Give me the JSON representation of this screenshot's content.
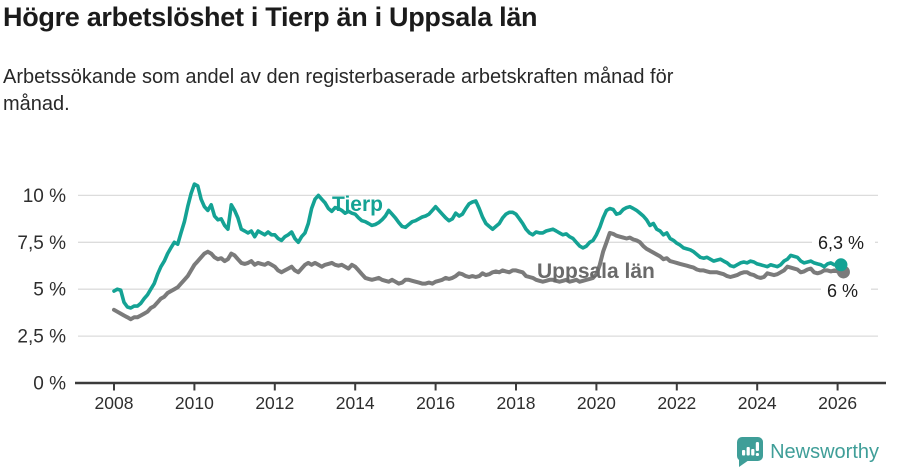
{
  "header": {
    "title": "Högre arbetslöshet i Tierp än i Uppsala län",
    "subtitle_lines": [
      "Arbetssökande som andel av den registerbaserade arbetskraften månad för",
      "månad."
    ]
  },
  "footer": {
    "brand": "Newsworthy"
  },
  "colors": {
    "tierp": "#14a294",
    "uppsala": "#7b7b7b",
    "uppsala_label": "#6a6a6a",
    "grid": "#dcdcdc",
    "axis": "#3b3b3b",
    "tick_text": "#2e2e2e",
    "value_label": "#1d1d1d",
    "brand_teal": "#3f9e98"
  },
  "chart_data": {
    "type": "line",
    "title": "Högre arbetslöshet i Tierp än i Uppsala län",
    "subtitle": "Arbetssökande som andel av den registerbaserade arbetskraften månad för månad.",
    "x_unit": "month",
    "x_start": "2008-01",
    "x_end": "2026-02",
    "x_tick_years": [
      2008,
      2010,
      2012,
      2014,
      2016,
      2018,
      2020,
      2022,
      2024,
      2026
    ],
    "y_tick_values": [
      0,
      2.5,
      5,
      7.5,
      10
    ],
    "y_tick_labels": [
      "0 %",
      "2,5 %",
      "5 %",
      "7,5 %",
      "10 %"
    ],
    "ylim": [
      0,
      11.3
    ],
    "grid": true,
    "legend_position": "inline-labels",
    "series": [
      {
        "name": "Tierp",
        "end_label": "6,3 %",
        "end_value": 6.3,
        "values": [
          4.9,
          5.0,
          4.95,
          4.3,
          4.05,
          4.0,
          4.1,
          4.1,
          4.25,
          4.5,
          4.7,
          5.0,
          5.3,
          5.8,
          6.2,
          6.5,
          6.9,
          7.2,
          7.5,
          7.4,
          8.0,
          8.6,
          9.4,
          10.1,
          10.6,
          10.5,
          9.8,
          9.4,
          9.2,
          9.5,
          8.9,
          8.7,
          8.75,
          8.4,
          8.2,
          9.5,
          9.2,
          8.8,
          8.2,
          8.1,
          8.0,
          8.1,
          7.8,
          8.1,
          8.0,
          7.9,
          8.05,
          7.9,
          7.9,
          7.7,
          7.6,
          7.8,
          7.9,
          8.05,
          7.7,
          7.5,
          7.8,
          8.0,
          8.5,
          9.3,
          9.8,
          10.0,
          9.8,
          9.6,
          9.3,
          9.15,
          9.35,
          9.3,
          9.2,
          9.05,
          9.15,
          9.05,
          9.0,
          8.8,
          8.65,
          8.6,
          8.5,
          8.4,
          8.45,
          8.55,
          8.7,
          8.9,
          9.2,
          9.0,
          8.8,
          8.55,
          8.35,
          8.3,
          8.45,
          8.6,
          8.65,
          8.75,
          8.85,
          8.9,
          9.0,
          9.2,
          9.4,
          9.2,
          9.0,
          8.8,
          8.65,
          8.75,
          9.05,
          8.9,
          9.0,
          9.3,
          9.55,
          9.65,
          9.7,
          9.3,
          8.85,
          8.5,
          8.35,
          8.2,
          8.35,
          8.5,
          8.8,
          9.0,
          9.1,
          9.1,
          9.0,
          8.75,
          8.5,
          8.2,
          8.0,
          7.9,
          8.05,
          8.0,
          8.0,
          8.1,
          8.15,
          8.2,
          8.1,
          8.0,
          7.9,
          7.95,
          7.8,
          7.7,
          7.5,
          7.3,
          7.2,
          7.3,
          7.5,
          7.6,
          7.9,
          8.3,
          8.8,
          9.2,
          9.3,
          9.25,
          9.0,
          9.05,
          9.25,
          9.35,
          9.4,
          9.3,
          9.2,
          9.05,
          8.9,
          8.7,
          8.4,
          8.5,
          8.2,
          8.1,
          7.9,
          8.0,
          7.7,
          7.6,
          7.45,
          7.35,
          7.2,
          7.15,
          7.1,
          7.0,
          6.85,
          6.7,
          6.65,
          6.7,
          6.6,
          6.5,
          6.55,
          6.6,
          6.5,
          6.4,
          6.25,
          6.2,
          6.3,
          6.4,
          6.45,
          6.4,
          6.5,
          6.45,
          6.35,
          6.3,
          6.25,
          6.2,
          6.3,
          6.25,
          6.2,
          6.3,
          6.5,
          6.6,
          6.8,
          6.75,
          6.7,
          6.5,
          6.4,
          6.45,
          6.5,
          6.4,
          6.35,
          6.3,
          6.2,
          6.35,
          6.4,
          6.3,
          6.35,
          6.3
        ]
      },
      {
        "name": "Uppsala län",
        "end_label": "6 %",
        "end_value": 6.0,
        "values": [
          3.9,
          3.8,
          3.7,
          3.6,
          3.5,
          3.4,
          3.5,
          3.5,
          3.6,
          3.7,
          3.8,
          4.0,
          4.1,
          4.3,
          4.5,
          4.6,
          4.8,
          4.9,
          5.0,
          5.1,
          5.3,
          5.5,
          5.7,
          6.0,
          6.3,
          6.5,
          6.7,
          6.9,
          7.0,
          6.9,
          6.7,
          6.6,
          6.65,
          6.5,
          6.6,
          6.9,
          6.8,
          6.6,
          6.4,
          6.35,
          6.4,
          6.5,
          6.3,
          6.4,
          6.35,
          6.3,
          6.4,
          6.3,
          6.2,
          6.0,
          5.9,
          6.0,
          6.1,
          6.2,
          6.0,
          5.9,
          6.1,
          6.3,
          6.4,
          6.3,
          6.4,
          6.3,
          6.2,
          6.3,
          6.35,
          6.4,
          6.3,
          6.25,
          6.3,
          6.2,
          6.1,
          6.3,
          6.2,
          6.0,
          5.8,
          5.6,
          5.55,
          5.5,
          5.55,
          5.6,
          5.5,
          5.45,
          5.4,
          5.5,
          5.4,
          5.3,
          5.35,
          5.5,
          5.5,
          5.45,
          5.4,
          5.35,
          5.3,
          5.3,
          5.35,
          5.3,
          5.4,
          5.45,
          5.5,
          5.6,
          5.55,
          5.6,
          5.7,
          5.85,
          5.8,
          5.7,
          5.65,
          5.7,
          5.65,
          5.7,
          5.85,
          5.75,
          5.8,
          5.9,
          5.95,
          5.9,
          6.0,
          5.95,
          5.9,
          6.0,
          6.0,
          5.95,
          5.9,
          5.7,
          5.65,
          5.6,
          5.5,
          5.45,
          5.4,
          5.45,
          5.5,
          5.5,
          5.45,
          5.4,
          5.45,
          5.5,
          5.4,
          5.45,
          5.5,
          5.4,
          5.45,
          5.5,
          5.55,
          5.6,
          5.8,
          6.3,
          7.0,
          7.5,
          8.0,
          7.95,
          7.85,
          7.8,
          7.75,
          7.7,
          7.75,
          7.65,
          7.6,
          7.5,
          7.3,
          7.15,
          7.05,
          6.95,
          6.85,
          6.75,
          6.6,
          6.65,
          6.5,
          6.45,
          6.4,
          6.35,
          6.3,
          6.25,
          6.2,
          6.15,
          6.05,
          6.0,
          6.0,
          5.95,
          5.9,
          5.9,
          5.9,
          5.85,
          5.8,
          5.7,
          5.65,
          5.7,
          5.75,
          5.85,
          5.9,
          5.9,
          5.8,
          5.75,
          5.65,
          5.6,
          5.65,
          5.85,
          5.8,
          5.75,
          5.8,
          5.9,
          6.0,
          6.2,
          6.15,
          6.1,
          6.05,
          5.9,
          5.95,
          6.05,
          6.1,
          5.9,
          5.85,
          5.9,
          6.0,
          6.0,
          5.95,
          6.0,
          5.95,
          6.0
        ]
      }
    ]
  }
}
